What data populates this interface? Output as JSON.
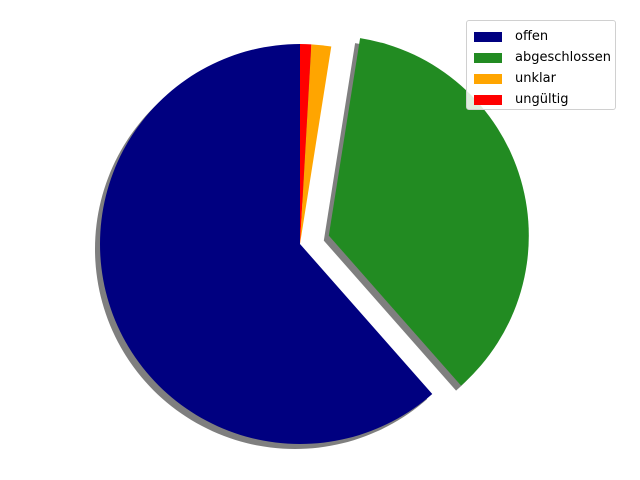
{
  "chart_data": {
    "type": "pie",
    "categories": [
      "offen",
      "abgeschlossen",
      "unklar",
      "ungültig"
    ],
    "values": [
      61.5,
      36.0,
      1.6,
      0.9
    ],
    "colors": [
      "#000080",
      "#228B22",
      "#FFA500",
      "#FF0000"
    ],
    "explode": [
      0,
      0.15,
      0,
      0
    ],
    "startangle": 90,
    "counterclock": true,
    "shadow": true,
    "title": "",
    "legend": {
      "placement": "top-right",
      "entries": [
        "offen",
        "abgeschlossen",
        "unklar",
        "ungültig"
      ]
    }
  }
}
